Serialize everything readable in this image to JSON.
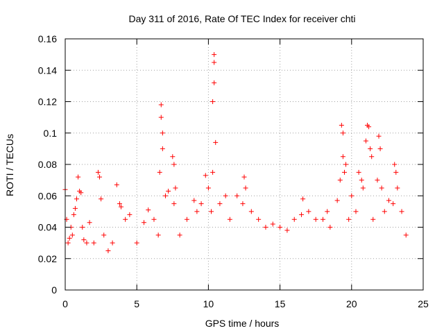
{
  "chart_data": {
    "type": "scatter",
    "title": "Day 311 of 2016, Rate Of TEC Index for receiver chti",
    "xlabel": "GPS time / hours",
    "ylabel": "ROTI / TECUs",
    "xlim": [
      0,
      25
    ],
    "ylim": [
      0,
      0.16
    ],
    "xticks": [
      0,
      5,
      10,
      15,
      20,
      25
    ],
    "yticks": [
      0,
      0.02,
      0.04,
      0.06,
      0.08,
      0.1,
      0.12,
      0.14,
      0.16
    ],
    "xtick_labels": [
      "0",
      "5",
      "10",
      "15",
      "20",
      "25"
    ],
    "ytick_labels": [
      "0",
      "0.02",
      "0.04",
      "0.06",
      "0.08",
      "0.1",
      "0.12",
      "0.14",
      "0.16"
    ],
    "grid": true,
    "marker": "plus",
    "color": "#ff0000",
    "series": [
      {
        "name": "chti",
        "x": [
          0.0,
          0.1,
          0.2,
          0.3,
          0.4,
          0.5,
          0.6,
          0.7,
          0.8,
          0.9,
          1.0,
          1.1,
          1.2,
          1.3,
          1.5,
          1.7,
          2.0,
          2.3,
          2.4,
          2.5,
          2.7,
          3.0,
          3.3,
          3.6,
          3.8,
          3.9,
          4.2,
          4.5,
          5.0,
          5.5,
          5.8,
          6.2,
          6.5,
          6.6,
          6.7,
          6.7,
          6.8,
          6.8,
          7.0,
          7.2,
          7.5,
          7.6,
          7.6,
          7.7,
          8.0,
          8.5,
          9.0,
          9.2,
          9.5,
          9.8,
          10.0,
          10.2,
          10.3,
          10.3,
          10.4,
          10.4,
          10.4,
          10.5,
          10.8,
          11.2,
          11.5,
          12.0,
          12.4,
          12.5,
          12.6,
          13.0,
          13.5,
          14.0,
          14.5,
          15.0,
          15.5,
          16.0,
          16.5,
          16.6,
          17.0,
          17.5,
          18.0,
          18.3,
          18.5,
          19.0,
          19.2,
          19.3,
          19.4,
          19.4,
          19.5,
          19.6,
          19.8,
          20.0,
          20.3,
          20.5,
          20.7,
          20.8,
          21.0,
          21.1,
          21.2,
          21.3,
          21.4,
          21.5,
          21.8,
          21.9,
          22.0,
          22.1,
          22.3,
          22.6,
          22.9,
          23.0,
          23.1,
          23.2,
          23.5,
          23.8
        ],
        "y": [
          0.064,
          0.045,
          0.03,
          0.033,
          0.04,
          0.035,
          0.048,
          0.052,
          0.058,
          0.072,
          0.063,
          0.062,
          0.04,
          0.032,
          0.03,
          0.043,
          0.03,
          0.075,
          0.072,
          0.058,
          0.035,
          0.025,
          0.03,
          0.067,
          0.055,
          0.053,
          0.045,
          0.048,
          0.03,
          0.043,
          0.051,
          0.045,
          0.035,
          0.075,
          0.118,
          0.11,
          0.09,
          0.1,
          0.06,
          0.063,
          0.085,
          0.08,
          0.055,
          0.065,
          0.035,
          0.045,
          0.057,
          0.05,
          0.055,
          0.073,
          0.065,
          0.05,
          0.075,
          0.12,
          0.15,
          0.145,
          0.132,
          0.094,
          0.055,
          0.06,
          0.045,
          0.06,
          0.055,
          0.072,
          0.065,
          0.05,
          0.045,
          0.04,
          0.042,
          0.04,
          0.038,
          0.045,
          0.048,
          0.058,
          0.05,
          0.045,
          0.045,
          0.05,
          0.04,
          0.057,
          0.07,
          0.105,
          0.1,
          0.085,
          0.075,
          0.08,
          0.045,
          0.06,
          0.05,
          0.075,
          0.07,
          0.065,
          0.095,
          0.105,
          0.104,
          0.09,
          0.085,
          0.045,
          0.07,
          0.098,
          0.09,
          0.065,
          0.05,
          0.057,
          0.055,
          0.08,
          0.075,
          0.065,
          0.05,
          0.035
        ]
      }
    ]
  }
}
